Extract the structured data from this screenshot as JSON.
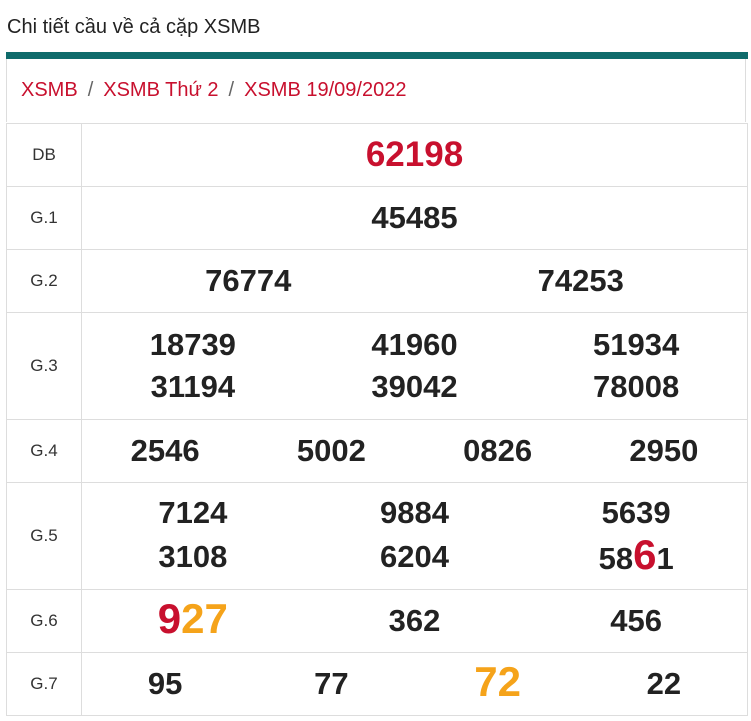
{
  "header": {
    "title": "Chi tiết cầu về cả cặp XSMB"
  },
  "breadcrumb": [
    "XSMB",
    "/",
    "XSMB Thứ 2",
    "/",
    "XSMB 19/09/2022"
  ],
  "table": {
    "rows": [
      {
        "label": "DB",
        "color": "#c8102e",
        "columns": 1,
        "numbers": [
          "62198"
        ]
      },
      {
        "label": "G.1",
        "columns": 1,
        "numbers": [
          "45485"
        ]
      },
      {
        "label": "G.2",
        "columns": 2,
        "numbers": [
          "76774",
          "74253"
        ]
      },
      {
        "label": "G.3",
        "columns": 3,
        "numbers": [
          "18739",
          "41960",
          "51934",
          "31194",
          "39042",
          "78008"
        ]
      },
      {
        "label": "G.4",
        "columns": 4,
        "numbers": [
          "2546",
          "5002",
          "0826",
          "2950"
        ]
      },
      {
        "label": "G.5",
        "columns": 3,
        "numbers": [
          "7124",
          "9884",
          "5639",
          "3108",
          "6204",
          {
            "parts": [
              {
                "text": "58"
              },
              {
                "text": "6",
                "color": "#c8102e"
              },
              {
                "text": "1"
              }
            ]
          }
        ]
      },
      {
        "label": "G.6",
        "columns": 3,
        "numbers": [
          {
            "parts": [
              {
                "text": "9",
                "color": "#c8102e"
              },
              {
                "text": "27",
                "color": "#f5a31a"
              }
            ]
          },
          "362",
          "456"
        ]
      },
      {
        "label": "G.7",
        "columns": 4,
        "numbers": [
          "95",
          "77",
          {
            "parts": [
              {
                "text": "72",
                "color": "#f5a31a"
              }
            ]
          },
          "22"
        ]
      }
    ]
  }
}
